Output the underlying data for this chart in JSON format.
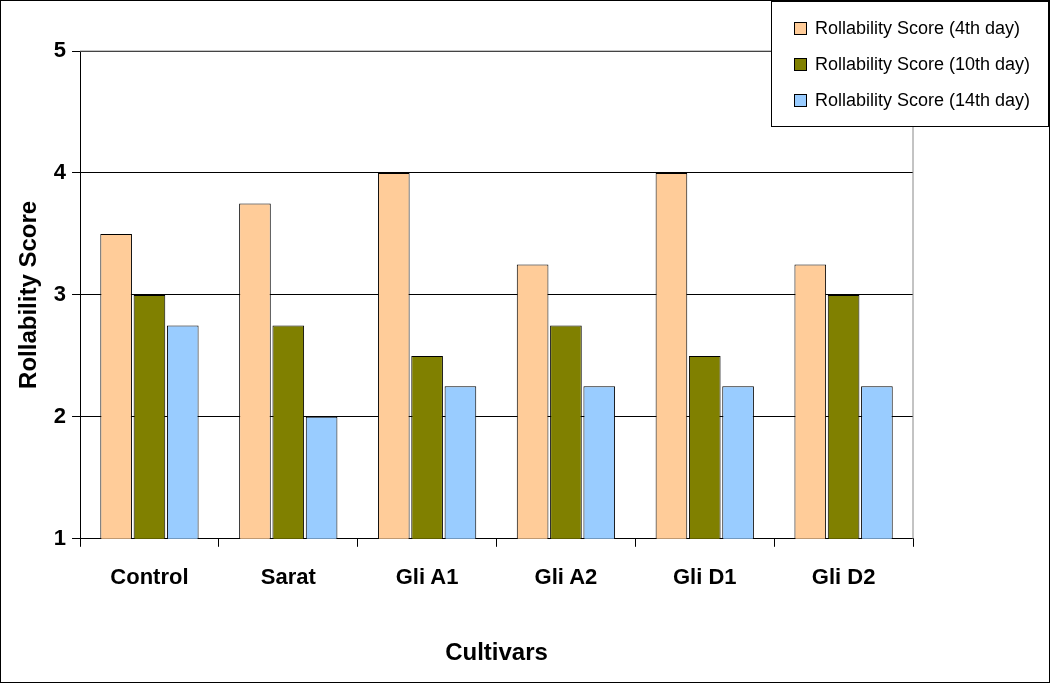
{
  "chart_data": {
    "type": "bar",
    "xlabel": "Cultivars",
    "ylabel": "Rollability Score",
    "categories": [
      "Control",
      "Sarat",
      "Gli A1",
      "Gli A2",
      "Gli D1",
      "Gli D2"
    ],
    "series": [
      {
        "name": "Rollability Score (4th day)",
        "color": "#ffcc99",
        "values": [
          3.5,
          3.75,
          4.0,
          3.25,
          4.0,
          3.25
        ]
      },
      {
        "name": "Rollability Score (10th day)",
        "color": "#808000",
        "values": [
          3.0,
          2.75,
          2.5,
          2.75,
          2.5,
          3.0
        ]
      },
      {
        "name": "Rollability Score (14th day)",
        "color": "#99ccff",
        "values": [
          2.75,
          2.0,
          2.25,
          2.25,
          2.25,
          2.25
        ]
      }
    ],
    "ylim": [
      1,
      5
    ],
    "yticks": [
      1,
      2,
      3,
      4,
      5
    ],
    "grid": "y",
    "legend": "top right"
  }
}
